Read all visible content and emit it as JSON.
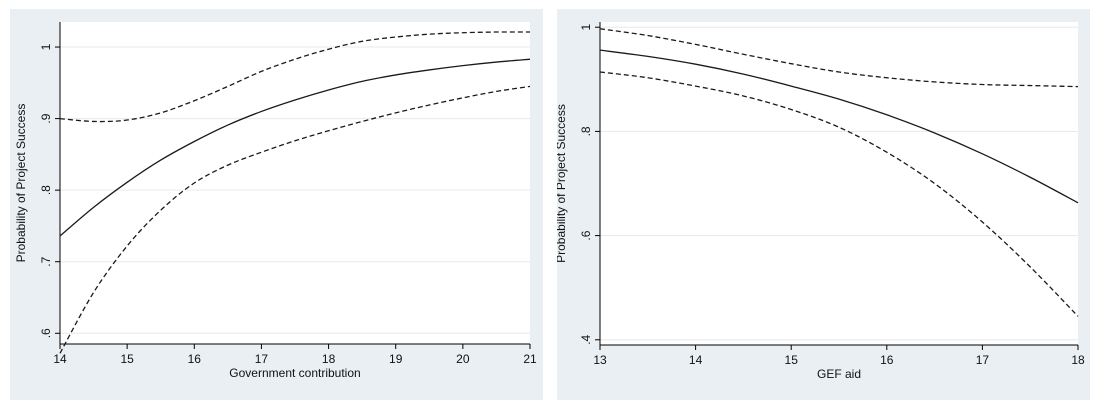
{
  "chart_data": [
    {
      "type": "line",
      "xlabel": "Government contribution",
      "ylabel": "Probability of Project Success",
      "xlim": [
        14,
        21
      ],
      "ylim": [
        0.585,
        1.035
      ],
      "x_ticks": [
        14,
        15,
        16,
        17,
        18,
        19,
        20,
        21
      ],
      "x_tick_labels": [
        "14",
        "15",
        "16",
        "17",
        "18",
        "19",
        "20",
        "21"
      ],
      "y_ticks": [
        0.6,
        0.7,
        0.8,
        0.9,
        1.0
      ],
      "y_tick_labels": [
        ".6",
        ".7",
        ".8",
        ".9",
        "1"
      ],
      "grid": true,
      "series": [
        {
          "style": "solid",
          "x": [
            14,
            14.5,
            15,
            15.5,
            16,
            16.5,
            17,
            17.5,
            18,
            18.5,
            19,
            19.5,
            20,
            20.5,
            21
          ],
          "y": [
            0.736,
            0.776,
            0.811,
            0.842,
            0.868,
            0.891,
            0.91,
            0.926,
            0.94,
            0.952,
            0.961,
            0.968,
            0.974,
            0.979,
            0.983
          ]
        },
        {
          "style": "dashed",
          "x": [
            14,
            14.5,
            15,
            15.5,
            16,
            16.5,
            17,
            17.5,
            18,
            18.5,
            19,
            19.5,
            20,
            20.5,
            21
          ],
          "y": [
            0.9,
            0.896,
            0.898,
            0.908,
            0.925,
            0.945,
            0.966,
            0.983,
            0.997,
            1.008,
            1.014,
            1.018,
            1.02,
            1.021,
            1.021
          ]
        },
        {
          "style": "dashed",
          "x": [
            14,
            14.5,
            15,
            15.5,
            16,
            16.5,
            17,
            17.5,
            18,
            18.5,
            19,
            19.5,
            20,
            20.5,
            21
          ],
          "y": [
            0.572,
            0.657,
            0.722,
            0.772,
            0.81,
            0.835,
            0.853,
            0.869,
            0.883,
            0.896,
            0.908,
            0.919,
            0.929,
            0.938,
            0.945
          ]
        }
      ]
    },
    {
      "type": "line",
      "xlabel": "GEF aid",
      "ylabel": "Probability of Project Success",
      "xlim": [
        13,
        18
      ],
      "ylim": [
        0.39,
        1.01
      ],
      "x_ticks": [
        13,
        14,
        15,
        16,
        17,
        18
      ],
      "x_tick_labels": [
        "13",
        "14",
        "15",
        "16",
        "17",
        "18"
      ],
      "y_ticks": [
        0.4,
        0.6,
        0.8,
        1.0
      ],
      "y_tick_labels": [
        ".4",
        ".6",
        ".8",
        "1"
      ],
      "grid": true,
      "series": [
        {
          "style": "solid",
          "x": [
            13,
            13.5,
            14,
            14.5,
            15,
            15.5,
            16,
            16.5,
            17,
            17.5,
            18
          ],
          "y": [
            0.956,
            0.944,
            0.929,
            0.91,
            0.887,
            0.862,
            0.832,
            0.797,
            0.757,
            0.712,
            0.663
          ]
        },
        {
          "style": "dashed",
          "x": [
            13,
            13.5,
            14,
            14.5,
            15,
            15.5,
            16,
            16.5,
            17,
            17.5,
            18
          ],
          "y": [
            0.997,
            0.984,
            0.967,
            0.948,
            0.93,
            0.914,
            0.903,
            0.895,
            0.89,
            0.888,
            0.886
          ]
        },
        {
          "style": "dashed",
          "x": [
            13,
            13.5,
            14,
            14.5,
            15,
            15.5,
            16,
            16.5,
            17,
            17.5,
            18
          ],
          "y": [
            0.914,
            0.903,
            0.887,
            0.868,
            0.842,
            0.808,
            0.76,
            0.7,
            0.626,
            0.54,
            0.445
          ]
        }
      ]
    }
  ]
}
